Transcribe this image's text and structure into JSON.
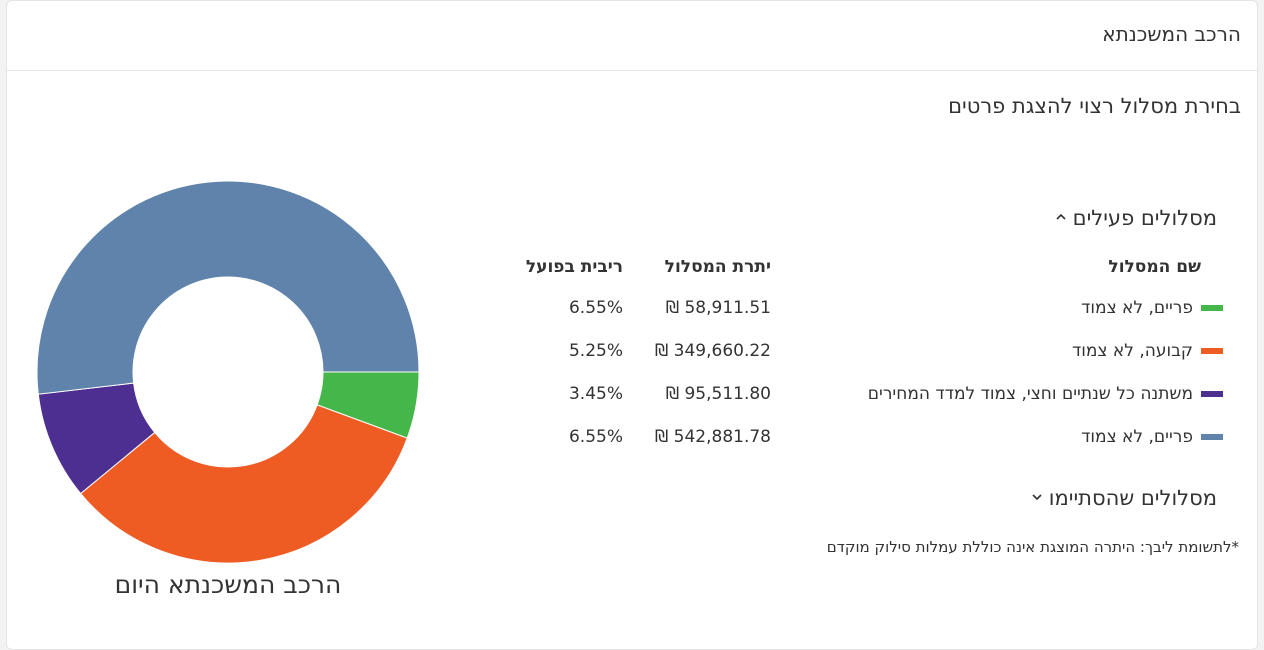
{
  "header": {
    "title": "הרכב המשכנתא"
  },
  "subtitle": "בחירת מסלול רצוי להצגת פרטים",
  "active_section": {
    "label": "מסלולים פעילים",
    "chevron": "chevron-up-icon"
  },
  "columns": {
    "name": "שם המסלול",
    "balance": "יתרת המסלול",
    "rate": "ריבית בפועל"
  },
  "tracks": [
    {
      "name": "פריים, לא צמוד",
      "balance": "58,911.51 ₪",
      "rate": "6.55%",
      "color": "#45b649"
    },
    {
      "name": "קבועה, לא צמוד",
      "balance": "349,660.22 ₪",
      "rate": "5.25%",
      "color": "#ee5c24"
    },
    {
      "name": "משתנה כל שנתיים וחצי, צמוד למדד המחירים",
      "balance": "95,511.80 ₪",
      "rate": "3.45%",
      "color": "#4d2f91"
    },
    {
      "name": "פריים, לא צמוד",
      "balance": "542,881.78 ₪",
      "rate": "6.55%",
      "color": "#5f83ab"
    }
  ],
  "ended_section": {
    "label": "מסלולים שהסתיימו",
    "chevron": "chevron-down-icon"
  },
  "note": "*לתשומת ליבך: היתרה המוצגת אינה כוללת עמלות סילוק מוקדם",
  "chart_data": {
    "type": "pie",
    "title": "הרכב המשכנתא היום",
    "categories": [
      "פריים, לא צמוד",
      "קבועה, לא צמוד",
      "משתנה כל שנתיים וחצי, צמוד למדד המחירים",
      "פריים, לא צמוד"
    ],
    "values": [
      58911.51,
      349660.22,
      95511.8,
      542881.78
    ],
    "colors": [
      "#45b649",
      "#ee5c24",
      "#4d2f91",
      "#5f83ab"
    ],
    "donut": true
  }
}
